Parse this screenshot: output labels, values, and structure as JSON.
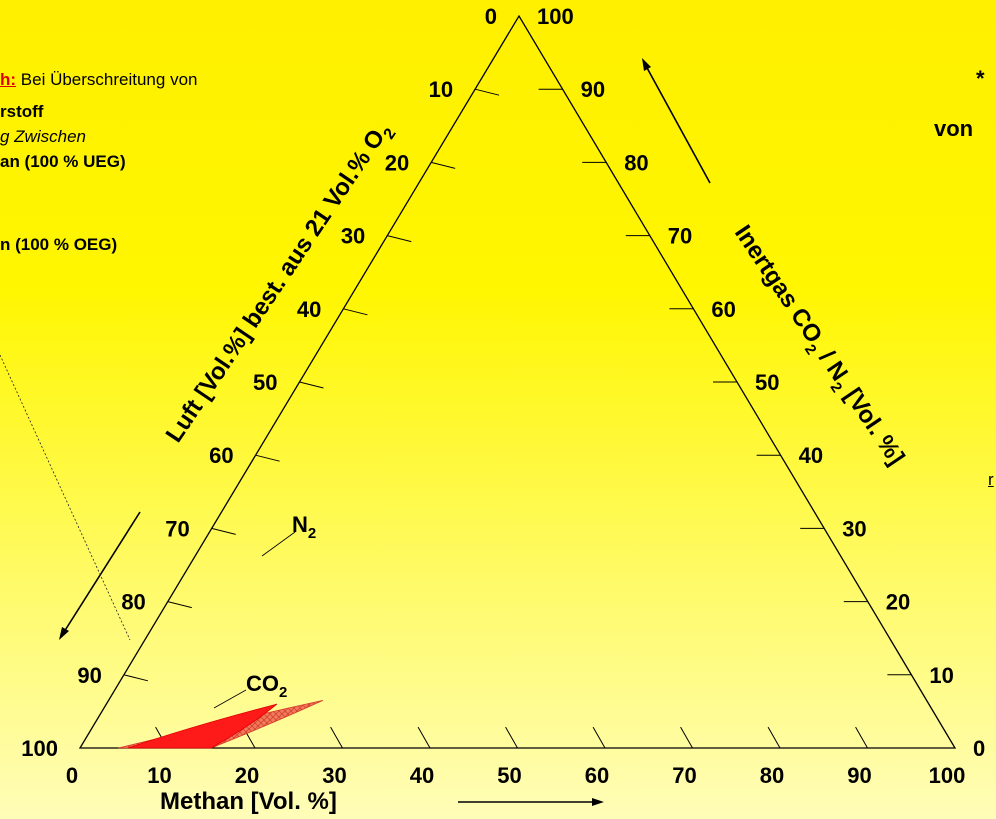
{
  "chart_data": {
    "type": "ternary",
    "axes": {
      "bottom": {
        "label": "Methan  [Vol. %]",
        "ticks": [
          "0",
          "10",
          "20",
          "30",
          "40",
          "50",
          "60",
          "70",
          "80",
          "90",
          "100"
        ]
      },
      "left": {
        "label": "Luft [Vol.%] best. aus 21 Vol.% O",
        "label_sub": "2",
        "ticks": [
          "100",
          "90",
          "80",
          "70",
          "60",
          "50",
          "40",
          "30",
          "20",
          "10",
          "0"
        ]
      },
      "right": {
        "label_a": "Inertgas CO",
        "label_sub_a": "2",
        "label_b": " / N",
        "label_sub_b": "2",
        "label_c": "  [Vol. %]",
        "ticks": [
          "0",
          "10",
          "20",
          "30",
          "40",
          "50",
          "60",
          "70",
          "80",
          "90",
          "100"
        ]
      }
    },
    "regions": [
      {
        "name": "N",
        "name_sub": "2",
        "color": "#f06a4e",
        "points": [
          [
            4.4,
            95.6
          ],
          [
            15,
            85
          ],
          [
            24.5,
            69
          ]
        ]
      },
      {
        "name": "CO",
        "name_sub": "2",
        "color": "#ff1a1a",
        "points": [
          [
            5.5,
            94.5
          ],
          [
            15,
            85
          ],
          [
            19.5,
            74.5
          ]
        ]
      }
    ]
  },
  "notes": {
    "line1_red": "h:",
    "line1_rest": " Bei Überschreitung von",
    "line2": "rstoff",
    "line3": "g Zwischen",
    "line4": "an (100 % UEG)",
    "line5": "n (100 % OEG)",
    "right_star": "*",
    "right_von": "von",
    "right_tick": "r"
  }
}
